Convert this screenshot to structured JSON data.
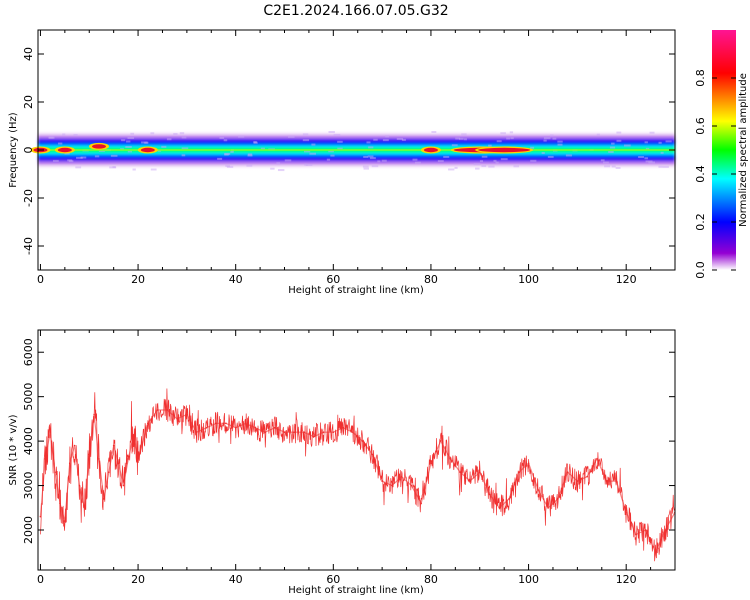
{
  "figure": {
    "title": "C2E1.2024.166.07.05.G32"
  },
  "chart_data": [
    {
      "type": "heatmap",
      "xlabel": "Height of straight line (km)",
      "ylabel": "Frequency (Hz)",
      "xlim": [
        -0.5,
        130
      ],
      "ylim": [
        -50,
        50
      ],
      "xticks": [
        0,
        20,
        40,
        60,
        80,
        100,
        120
      ],
      "yticks": [
        -40,
        -20,
        0,
        20,
        40
      ],
      "colorbar": {
        "label": "Normalized spectral amplitude",
        "range": [
          0,
          1
        ],
        "ticks": [
          0.0,
          0.2,
          0.4,
          0.6,
          0.8
        ],
        "colormap": [
          "#ffffff",
          "#9400d3",
          "#0000ff",
          "#00ffff",
          "#00ff00",
          "#ffff00",
          "#ff0000",
          "#ff1493"
        ]
      },
      "band_center_hz": 0,
      "band_width_hz": [
        -4,
        4
      ],
      "hot_spots_km": [
        0,
        5,
        12,
        22,
        80,
        90,
        95
      ],
      "grid": false
    },
    {
      "type": "line",
      "xlabel": "Height of straight line (km)",
      "ylabel": "SNR (10 * v/v)",
      "xlim": [
        -0.5,
        130
      ],
      "ylim": [
        1100,
        6500
      ],
      "xticks": [
        0,
        20,
        40,
        60,
        80,
        100,
        120
      ],
      "yticks": [
        2000,
        3000,
        4000,
        5000,
        6000
      ],
      "color": "#f03030",
      "grid": false,
      "series": [
        {
          "x": [
            0,
            1,
            2,
            3,
            4,
            5,
            6,
            7,
            8,
            9,
            10,
            11,
            12,
            13,
            14,
            15,
            16,
            17,
            18,
            19,
            20,
            22,
            24,
            26,
            28,
            30,
            32,
            34,
            36,
            38,
            40,
            42,
            44,
            46,
            48,
            50,
            52,
            54,
            56,
            58,
            60,
            62,
            64,
            66,
            68,
            70,
            72,
            74,
            76,
            78,
            80,
            82,
            84,
            86,
            88,
            90,
            92,
            94,
            96,
            98,
            100,
            102,
            104,
            106,
            108,
            110,
            112,
            114,
            116,
            118,
            120,
            122,
            124,
            126,
            128,
            130
          ],
          "values": [
            2300,
            3600,
            4200,
            3300,
            2600,
            2200,
            3500,
            3900,
            3000,
            2500,
            3700,
            4600,
            3600,
            2700,
            3300,
            3900,
            3500,
            3000,
            3600,
            4100,
            3600,
            4400,
            4700,
            4700,
            4500,
            4600,
            4200,
            4300,
            4400,
            4400,
            4300,
            4400,
            4300,
            4200,
            4300,
            4200,
            4200,
            4200,
            4100,
            4200,
            4200,
            4300,
            4200,
            4000,
            3700,
            3100,
            3000,
            3200,
            3000,
            2600,
            3500,
            4000,
            3600,
            3300,
            3100,
            3300,
            2800,
            2500,
            2700,
            3300,
            3500,
            2900,
            2500,
            2700,
            3300,
            3100,
            3200,
            3600,
            3100,
            3100,
            2400,
            1900,
            2000,
            1500,
            2000,
            2400
          ]
        }
      ]
    }
  ]
}
